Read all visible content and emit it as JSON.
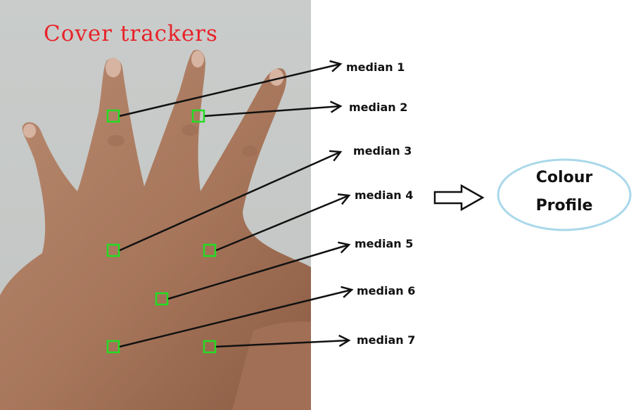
{
  "photo": {
    "overlay_text": "Cover trackers",
    "overlay_color": "#e8232a",
    "tracker_color": "#22dd22"
  },
  "medians": [
    {
      "label": "median 1"
    },
    {
      "label": "median 2"
    },
    {
      "label": "median 3"
    },
    {
      "label": "median 4"
    },
    {
      "label": "median 5"
    },
    {
      "label": "median 6"
    },
    {
      "label": "median 7"
    }
  ],
  "profile": {
    "line1": "Colour",
    "line2": "Profile",
    "border_color": "#a9d8ea"
  }
}
